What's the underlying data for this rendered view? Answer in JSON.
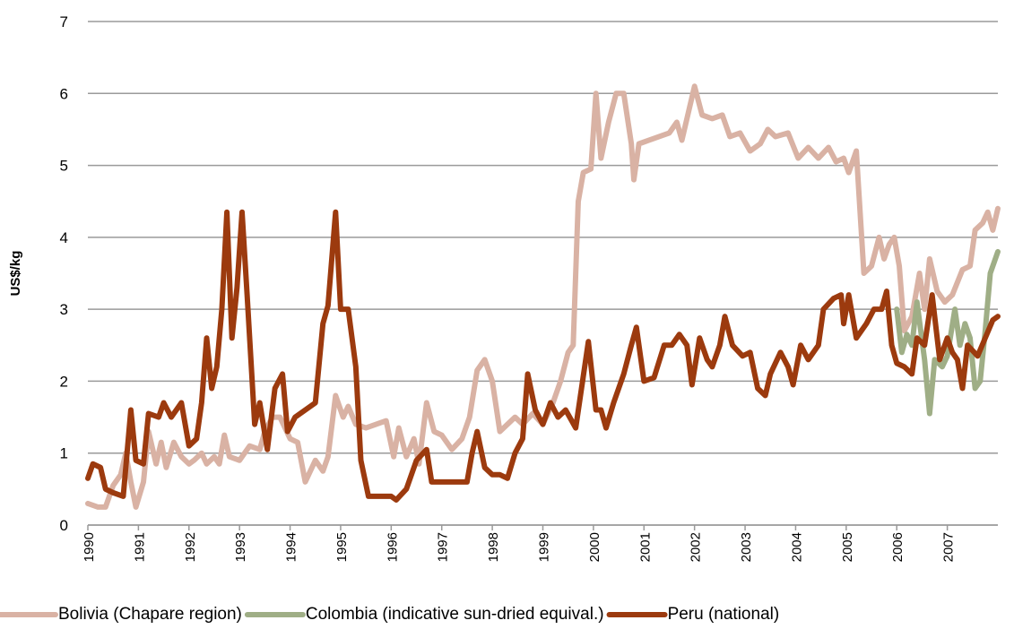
{
  "chart_data": {
    "type": "line",
    "ylabel": "US$/kg",
    "xlim": [
      1990,
      2008
    ],
    "ylim": [
      0,
      7
    ],
    "xticks": [
      1990,
      1991,
      1992,
      1993,
      1994,
      1995,
      1996,
      1997,
      1998,
      1999,
      2000,
      2001,
      2002,
      2003,
      2004,
      2005,
      2006,
      2007
    ],
    "yticks": [
      0,
      1,
      2,
      3,
      4,
      5,
      6,
      7
    ],
    "grid": true,
    "legend": "bottom",
    "series": [
      {
        "name": "Bolivia (Chapare region)",
        "color": "#d9b2a4",
        "x": [
          1990.0,
          1990.2,
          1990.35,
          1990.5,
          1990.65,
          1990.75,
          1990.85,
          1990.95,
          1991.1,
          1991.2,
          1991.35,
          1991.45,
          1991.55,
          1991.7,
          1991.85,
          1992.0,
          1992.1,
          1992.25,
          1992.35,
          1992.5,
          1992.6,
          1992.7,
          1992.8,
          1993.0,
          1993.2,
          1993.4,
          1993.5,
          1993.65,
          1993.8,
          1994.0,
          1994.15,
          1994.3,
          1994.5,
          1994.65,
          1994.75,
          1994.9,
          1995.05,
          1995.15,
          1995.3,
          1995.5,
          1995.7,
          1995.9,
          1996.05,
          1996.15,
          1996.3,
          1996.45,
          1996.55,
          1996.7,
          1996.85,
          1997.0,
          1997.2,
          1997.4,
          1997.55,
          1997.7,
          1997.85,
          1998.0,
          1998.15,
          1998.3,
          1998.45,
          1998.6,
          1998.8,
          1999.0,
          1999.2,
          1999.35,
          1999.5,
          1999.6,
          1999.7,
          1999.8,
          1999.95,
          2000.05,
          2000.15,
          2000.3,
          2000.45,
          2000.6,
          2000.75,
          2000.8,
          2000.9,
          2001.1,
          2001.3,
          2001.5,
          2001.65,
          2001.75,
          2001.9,
          2002.0,
          2002.15,
          2002.35,
          2002.55,
          2002.7,
          2002.9,
          2003.1,
          2003.3,
          2003.45,
          2003.6,
          2003.85,
          2004.05,
          2004.25,
          2004.45,
          2004.65,
          2004.8,
          2004.95,
          2005.05,
          2005.2,
          2005.35,
          2005.5,
          2005.65,
          2005.75,
          2005.85,
          2005.95,
          2006.05,
          2006.15,
          2006.3,
          2006.45,
          2006.55,
          2006.65,
          2006.8,
          2006.95,
          2007.1,
          2007.3,
          2007.45,
          2007.55,
          2007.7,
          2007.8,
          2007.9,
          2008.0
        ],
        "values": [
          0.3,
          0.25,
          0.25,
          0.55,
          0.7,
          1.0,
          0.6,
          0.25,
          0.6,
          1.3,
          0.85,
          1.15,
          0.8,
          1.15,
          0.95,
          0.85,
          0.9,
          1.0,
          0.85,
          0.95,
          0.85,
          1.25,
          0.95,
          0.9,
          1.1,
          1.05,
          1.3,
          1.5,
          1.5,
          1.2,
          1.15,
          0.6,
          0.9,
          0.75,
          0.95,
          1.8,
          1.5,
          1.65,
          1.4,
          1.35,
          1.4,
          1.45,
          0.95,
          1.35,
          0.95,
          1.2,
          0.85,
          1.7,
          1.3,
          1.25,
          1.05,
          1.2,
          1.5,
          2.15,
          2.3,
          2.0,
          1.3,
          1.4,
          1.5,
          1.4,
          1.55,
          1.4,
          1.7,
          2.0,
          2.4,
          2.5,
          4.5,
          4.9,
          4.95,
          6.0,
          5.1,
          5.6,
          6.0,
          6.0,
          5.3,
          4.8,
          5.3,
          5.35,
          5.4,
          5.45,
          5.6,
          5.35,
          5.8,
          6.1,
          5.7,
          5.65,
          5.7,
          5.4,
          5.45,
          5.2,
          5.3,
          5.5,
          5.4,
          5.45,
          5.1,
          5.25,
          5.1,
          5.25,
          5.05,
          5.1,
          4.9,
          5.2,
          3.5,
          3.6,
          4.0,
          3.7,
          3.9,
          4.0,
          3.6,
          2.7,
          2.9,
          3.5,
          3.0,
          3.7,
          3.25,
          3.1,
          3.2,
          3.55,
          3.6,
          4.1,
          4.2,
          4.35,
          4.1,
          4.4
        ]
      },
      {
        "name": "Colombia (indicative sun-dried equival.)",
        "color": "#9fae86",
        "x": [
          2006.0,
          2006.1,
          2006.2,
          2006.3,
          2006.4,
          2006.55,
          2006.65,
          2006.75,
          2006.9,
          2007.0,
          2007.15,
          2007.25,
          2007.35,
          2007.45,
          2007.55,
          2007.65,
          2007.75,
          2007.85,
          2008.0
        ],
        "values": [
          3.0,
          2.4,
          2.65,
          2.5,
          3.1,
          2.3,
          1.55,
          2.3,
          2.2,
          2.35,
          3.0,
          2.5,
          2.8,
          2.6,
          1.9,
          2.0,
          2.7,
          3.5,
          3.8
        ]
      },
      {
        "name": "Peru (national)",
        "color": "#9c3a0e",
        "x": [
          1990.0,
          1990.1,
          1990.25,
          1990.35,
          1990.5,
          1990.7,
          1990.85,
          1990.95,
          1991.1,
          1991.2,
          1991.4,
          1991.5,
          1991.65,
          1991.85,
          1992.0,
          1992.15,
          1992.25,
          1992.35,
          1992.45,
          1992.55,
          1992.65,
          1992.75,
          1992.85,
          1992.95,
          1993.05,
          1993.15,
          1993.3,
          1993.4,
          1993.55,
          1993.7,
          1993.85,
          1993.95,
          1994.1,
          1994.3,
          1994.5,
          1994.65,
          1994.75,
          1994.9,
          1995.0,
          1995.15,
          1995.3,
          1995.4,
          1995.55,
          1995.8,
          1996.0,
          1996.1,
          1996.3,
          1996.5,
          1996.7,
          1996.8,
          1997.0,
          1997.3,
          1997.5,
          1997.6,
          1997.7,
          1997.85,
          1998.0,
          1998.15,
          1998.3,
          1998.45,
          1998.6,
          1998.7,
          1998.85,
          1999.0,
          1999.15,
          1999.3,
          1999.45,
          1999.65,
          1999.9,
          2000.05,
          2000.15,
          2000.25,
          2000.4,
          2000.6,
          2000.75,
          2000.85,
          2001.0,
          2001.2,
          2001.4,
          2001.55,
          2001.7,
          2001.85,
          2001.95,
          2002.1,
          2002.25,
          2002.35,
          2002.5,
          2002.6,
          2002.75,
          2002.95,
          2003.1,
          2003.25,
          2003.4,
          2003.5,
          2003.7,
          2003.85,
          2003.95,
          2004.1,
          2004.25,
          2004.45,
          2004.55,
          2004.75,
          2004.9,
          2004.95,
          2005.05,
          2005.2,
          2005.4,
          2005.55,
          2005.7,
          2005.8,
          2005.9,
          2006.0,
          2006.15,
          2006.3,
          2006.4,
          2006.55,
          2006.7,
          2006.85,
          2007.0,
          2007.1,
          2007.2,
          2007.3,
          2007.4,
          2007.6,
          2007.75,
          2007.9,
          2008.0
        ],
        "values": [
          0.65,
          0.85,
          0.8,
          0.5,
          0.45,
          0.4,
          1.6,
          0.9,
          0.85,
          1.55,
          1.5,
          1.7,
          1.5,
          1.7,
          1.1,
          1.2,
          1.7,
          2.6,
          1.9,
          2.2,
          3.0,
          4.35,
          2.6,
          3.3,
          4.35,
          3.2,
          1.4,
          1.7,
          1.05,
          1.9,
          2.1,
          1.3,
          1.5,
          1.6,
          1.7,
          2.8,
          3.05,
          4.35,
          3.0,
          3.0,
          2.2,
          0.9,
          0.4,
          0.4,
          0.4,
          0.35,
          0.5,
          0.9,
          1.05,
          0.6,
          0.6,
          0.6,
          0.6,
          1.0,
          1.3,
          0.8,
          0.7,
          0.7,
          0.65,
          1.0,
          1.2,
          2.1,
          1.6,
          1.4,
          1.7,
          1.5,
          1.6,
          1.35,
          2.55,
          1.6,
          1.6,
          1.35,
          1.7,
          2.1,
          2.5,
          2.75,
          2.0,
          2.05,
          2.5,
          2.5,
          2.65,
          2.5,
          1.95,
          2.6,
          2.3,
          2.2,
          2.5,
          2.9,
          2.5,
          2.35,
          2.4,
          1.9,
          1.8,
          2.1,
          2.4,
          2.2,
          1.95,
          2.5,
          2.3,
          2.5,
          3.0,
          3.15,
          3.2,
          2.8,
          3.2,
          2.6,
          2.8,
          3.0,
          3.0,
          3.25,
          2.5,
          2.25,
          2.2,
          2.1,
          2.6,
          2.5,
          3.2,
          2.3,
          2.6,
          2.4,
          2.3,
          1.9,
          2.5,
          2.35,
          2.6,
          2.85,
          2.9
        ]
      }
    ]
  }
}
